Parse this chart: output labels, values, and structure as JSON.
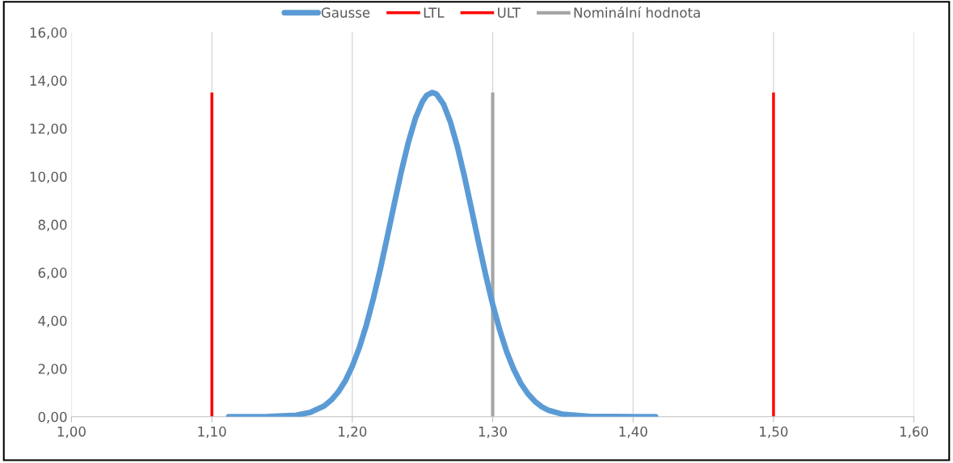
{
  "chart_data": {
    "type": "line",
    "xlim": [
      1.0,
      1.6
    ],
    "ylim": [
      0,
      16
    ],
    "xticks": [
      {
        "value": 1.0,
        "label": "1,00"
      },
      {
        "value": 1.1,
        "label": "1,10"
      },
      {
        "value": 1.2,
        "label": "1,20"
      },
      {
        "value": 1.3,
        "label": "1,30"
      },
      {
        "value": 1.4,
        "label": "1,40"
      },
      {
        "value": 1.5,
        "label": "1,50"
      },
      {
        "value": 1.6,
        "label": "1,60"
      }
    ],
    "yticks": [
      {
        "value": 0,
        "label": "0,00"
      },
      {
        "value": 2,
        "label": "2,00"
      },
      {
        "value": 4,
        "label": "4,00"
      },
      {
        "value": 6,
        "label": "6,00"
      },
      {
        "value": 8,
        "label": "8,00"
      },
      {
        "value": 10,
        "label": "10,00"
      },
      {
        "value": 12,
        "label": "12,00"
      },
      {
        "value": 14,
        "label": "14,00"
      },
      {
        "value": 16,
        "label": "16,00"
      }
    ],
    "grid": "x",
    "legend": "top",
    "marker": "none",
    "line_style": "solid",
    "series": [
      {
        "name": "Gausse",
        "color": "#5b9bd5",
        "x": [
          1.112,
          1.14,
          1.16,
          1.17,
          1.18,
          1.185,
          1.19,
          1.195,
          1.2,
          1.205,
          1.21,
          1.215,
          1.22,
          1.225,
          1.23,
          1.235,
          1.24,
          1.245,
          1.25,
          1.253,
          1.257,
          1.26,
          1.265,
          1.27,
          1.275,
          1.28,
          1.285,
          1.29,
          1.295,
          1.3,
          1.305,
          1.31,
          1.315,
          1.32,
          1.325,
          1.33,
          1.335,
          1.34,
          1.35,
          1.37,
          1.4,
          1.416
        ],
        "values": [
          0.0,
          0.01,
          0.06,
          0.18,
          0.45,
          0.69,
          1.03,
          1.49,
          2.1,
          2.87,
          3.81,
          4.92,
          6.16,
          7.51,
          8.89,
          10.23,
          11.44,
          12.43,
          13.12,
          13.38,
          13.5,
          13.43,
          13.01,
          12.25,
          11.21,
          9.97,
          8.62,
          7.24,
          5.9,
          4.68,
          3.61,
          2.7,
          1.97,
          1.39,
          0.96,
          0.64,
          0.41,
          0.26,
          0.1,
          0.01,
          0.0,
          0.0
        ]
      },
      {
        "name": "LTL",
        "color": "#ff0000",
        "x": [
          1.1,
          1.1
        ],
        "values": [
          0,
          13.5
        ]
      },
      {
        "name": "ULT",
        "color": "#fe0000",
        "x": [
          1.5,
          1.5
        ],
        "values": [
          0,
          13.5
        ]
      },
      {
        "name": "Nominální hodnota",
        "color": "#a5a5a5",
        "x": [
          1.3,
          1.3
        ],
        "values": [
          0,
          13.5
        ]
      }
    ]
  }
}
